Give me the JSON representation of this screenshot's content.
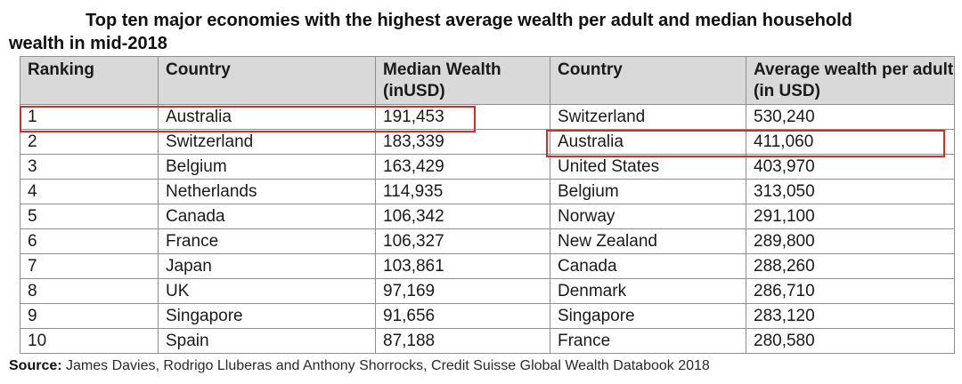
{
  "title": {
    "line1": "Top ten major economies with the highest average wealth per adult and median household",
    "line2": "wealth in mid-2018"
  },
  "table": {
    "headers": {
      "ranking": "Ranking",
      "country1": "Country",
      "median_wealth": "Median Wealth (inUSD)",
      "country2": "Country",
      "average_wealth": "Average wealth per adult (in USD)"
    },
    "rows": [
      {
        "rank": "1",
        "median_country": "Australia",
        "median_wealth": "191,453",
        "avg_country": "Switzerland",
        "avg_wealth": "530,240"
      },
      {
        "rank": "2",
        "median_country": "Switzerland",
        "median_wealth": "183,339",
        "avg_country": "Australia",
        "avg_wealth": "411,060"
      },
      {
        "rank": "3",
        "median_country": "Belgium",
        "median_wealth": "163,429",
        "avg_country": "United States",
        "avg_wealth": "403,970"
      },
      {
        "rank": "4",
        "median_country": "Netherlands",
        "median_wealth": "114,935",
        "avg_country": "Belgium",
        "avg_wealth": "313,050"
      },
      {
        "rank": "5",
        "median_country": "Canada",
        "median_wealth": "106,342",
        "avg_country": "Norway",
        "avg_wealth": "291,100"
      },
      {
        "rank": "6",
        "median_country": "France",
        "median_wealth": "106,327",
        "avg_country": "New Zealand",
        "avg_wealth": "289,800"
      },
      {
        "rank": "7",
        "median_country": "Japan",
        "median_wealth": "103,861",
        "avg_country": "Canada",
        "avg_wealth": "288,260"
      },
      {
        "rank": "8",
        "median_country": "UK",
        "median_wealth": "97,169",
        "avg_country": "Denmark",
        "avg_wealth": "286,710"
      },
      {
        "rank": "9",
        "median_country": "Singapore",
        "median_wealth": "91,656",
        "avg_country": "Singapore",
        "avg_wealth": "283,120"
      },
      {
        "rank": "10",
        "median_country": "Spain",
        "median_wealth": "87,188",
        "avg_country": "France",
        "avg_wealth": "280,580"
      }
    ]
  },
  "highlight_color": "#c8302f",
  "source": {
    "label": "Source:",
    "text": "James Davies, Rodrigo Lluberas and Anthony Shorrocks, Credit Suisse Global Wealth Databook 2018"
  }
}
